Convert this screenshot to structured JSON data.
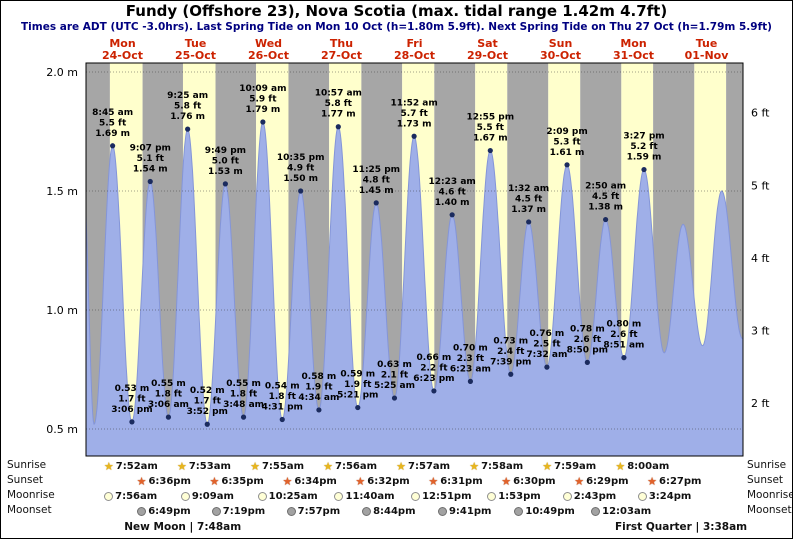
{
  "title": "Fundy (Offshore 23), Nova Scotia (max. tidal range 1.42m 4.7ft)",
  "subtitle": "Times are ADT (UTC -3.0hrs). Last Spring Tide on Mon 10 Oct (h=1.80m 5.9ft). Next Spring Tide on Thu 27 Oct (h=1.79m 5.9ft)",
  "chart_data": {
    "type": "area",
    "x_range_days": 9,
    "y_axis_left": {
      "unit": "m",
      "ticks": [
        "2.0 m",
        "1.5 m",
        "1.0 m",
        "0.5 m"
      ],
      "values": [
        2.0,
        1.5,
        1.0,
        0.5
      ]
    },
    "y_axis_right": {
      "unit": "ft",
      "ticks": [
        "6 ft",
        "5 ft",
        "4 ft",
        "3 ft",
        "2 ft"
      ],
      "values": [
        6,
        5,
        4,
        3,
        2
      ]
    },
    "days": [
      {
        "name": "Mon",
        "date": "24-Oct"
      },
      {
        "name": "Tue",
        "date": "25-Oct"
      },
      {
        "name": "Wed",
        "date": "26-Oct"
      },
      {
        "name": "Thu",
        "date": "27-Oct"
      },
      {
        "name": "Fri",
        "date": "28-Oct"
      },
      {
        "name": "Sat",
        "date": "29-Oct"
      },
      {
        "name": "Sun",
        "date": "30-Oct"
      },
      {
        "name": "Mon",
        "date": "31-Oct"
      },
      {
        "name": "Tue",
        "date": "01-Nov"
      }
    ],
    "tides": [
      {
        "kind": "high",
        "t": -0.8,
        "v": 1.52,
        "labeled": false
      },
      {
        "kind": "low",
        "t": 2.67,
        "v": 0.52,
        "labeled": false
      },
      {
        "kind": "high",
        "t": 8.75,
        "v": 1.69,
        "labeled": true,
        "time": "8:45 am",
        "ft": "5.5 ft",
        "m": "1.69 m"
      },
      {
        "kind": "low",
        "t": 15.1,
        "v": 0.53,
        "labeled": true,
        "time": "3:06 pm",
        "ft": "1.7 ft",
        "m": "0.53 m"
      },
      {
        "kind": "high",
        "t": 21.12,
        "v": 1.54,
        "labeled": true,
        "time": "9:07 pm",
        "ft": "5.1 ft",
        "m": "1.54 m"
      },
      {
        "kind": "low",
        "t": 27.1,
        "v": 0.55,
        "labeled": true,
        "time": "3:06 am",
        "ft": "1.8 ft",
        "m": "0.55 m"
      },
      {
        "kind": "high",
        "t": 33.42,
        "v": 1.76,
        "labeled": true,
        "time": "9:25 am",
        "ft": "5.8 ft",
        "m": "1.76 m"
      },
      {
        "kind": "low",
        "t": 39.87,
        "v": 0.52,
        "labeled": true,
        "time": "3:52 pm",
        "ft": "1.7 ft",
        "m": "0.52 m"
      },
      {
        "kind": "high",
        "t": 45.82,
        "v": 1.53,
        "labeled": true,
        "time": "9:49 pm",
        "ft": "5.0 ft",
        "m": "1.53 m"
      },
      {
        "kind": "low",
        "t": 51.8,
        "v": 0.55,
        "labeled": true,
        "time": "3:48 am",
        "ft": "1.8 ft",
        "m": "0.55 m"
      },
      {
        "kind": "high",
        "t": 58.15,
        "v": 1.79,
        "labeled": true,
        "time": "10:09 am",
        "ft": "5.9 ft",
        "m": "1.79 m"
      },
      {
        "kind": "low",
        "t": 64.52,
        "v": 0.54,
        "labeled": true,
        "time": "4:31 pm",
        "ft": "1.8 ft",
        "m": "0.54 m"
      },
      {
        "kind": "high",
        "t": 70.58,
        "v": 1.5,
        "labeled": true,
        "time": "10:35 pm",
        "ft": "4.9 ft",
        "m": "1.50 m"
      },
      {
        "kind": "low",
        "t": 76.57,
        "v": 0.58,
        "labeled": true,
        "time": "4:34 am",
        "ft": "1.9 ft",
        "m": "0.58 m"
      },
      {
        "kind": "high",
        "t": 82.95,
        "v": 1.77,
        "labeled": true,
        "time": "10:57 am",
        "ft": "5.8 ft",
        "m": "1.77 m"
      },
      {
        "kind": "low",
        "t": 89.35,
        "v": 0.59,
        "labeled": true,
        "time": "5:21 pm",
        "ft": "1.9 ft",
        "m": "0.59 m"
      },
      {
        "kind": "high",
        "t": 95.42,
        "v": 1.45,
        "labeled": true,
        "time": "11:25 pm",
        "ft": "4.8 ft",
        "m": "1.45 m"
      },
      {
        "kind": "low",
        "t": 101.42,
        "v": 0.63,
        "labeled": true,
        "time": "5:25 am",
        "ft": "2.1 ft",
        "m": "0.63 m"
      },
      {
        "kind": "high",
        "t": 107.87,
        "v": 1.73,
        "labeled": true,
        "time": "11:52 am",
        "ft": "5.7 ft",
        "m": "1.73 m"
      },
      {
        "kind": "low",
        "t": 114.38,
        "v": 0.66,
        "labeled": true,
        "time": "6:23 pm",
        "ft": "2.2 ft",
        "m": "0.66 m"
      },
      {
        "kind": "high",
        "t": 120.38,
        "v": 1.4,
        "labeled": true,
        "time": "12:23 am",
        "ft": "4.6 ft",
        "m": "1.40 m"
      },
      {
        "kind": "low",
        "t": 126.38,
        "v": 0.7,
        "labeled": true,
        "time": "6:23 am",
        "ft": "2.3 ft",
        "m": "0.70 m"
      },
      {
        "kind": "high",
        "t": 132.92,
        "v": 1.67,
        "labeled": true,
        "time": "12:55 pm",
        "ft": "5.5 ft",
        "m": "1.67 m"
      },
      {
        "kind": "low",
        "t": 139.65,
        "v": 0.73,
        "labeled": true,
        "time": "7:39 pm",
        "ft": "2.4 ft",
        "m": "0.73 m"
      },
      {
        "kind": "high",
        "t": 145.53,
        "v": 1.37,
        "labeled": true,
        "time": "1:32 am",
        "ft": "4.5 ft",
        "m": "1.37 m"
      },
      {
        "kind": "low",
        "t": 151.53,
        "v": 0.76,
        "labeled": true,
        "time": "7:32 am",
        "ft": "2.5 ft",
        "m": "0.76 m"
      },
      {
        "kind": "high",
        "t": 158.15,
        "v": 1.61,
        "labeled": true,
        "time": "2:09 pm",
        "ft": "5.3 ft",
        "m": "1.61 m"
      },
      {
        "kind": "low",
        "t": 164.83,
        "v": 0.78,
        "labeled": true,
        "time": "8:50 pm",
        "ft": "2.6 ft",
        "m": "0.78 m"
      },
      {
        "kind": "high",
        "t": 170.83,
        "v": 1.38,
        "labeled": true,
        "time": "2:50 am",
        "ft": "4.5 ft",
        "m": "1.38 m"
      },
      {
        "kind": "low",
        "t": 176.85,
        "v": 0.8,
        "labeled": true,
        "time": "8:51 am",
        "ft": "2.6 ft",
        "m": "0.80 m"
      },
      {
        "kind": "high",
        "t": 183.45,
        "v": 1.59,
        "labeled": true,
        "time": "3:27 pm",
        "ft": "5.2 ft",
        "m": "1.59 m"
      },
      {
        "kind": "low",
        "t": 190.1,
        "v": 0.82,
        "labeled": false
      },
      {
        "kind": "high",
        "t": 196.3,
        "v": 1.36,
        "labeled": false
      },
      {
        "kind": "low",
        "t": 202.7,
        "v": 0.85,
        "labeled": false
      },
      {
        "kind": "high",
        "t": 209.0,
        "v": 1.5,
        "labeled": false
      },
      {
        "kind": "low",
        "t": 215.8,
        "v": 0.88,
        "labeled": false
      },
      {
        "kind": "high",
        "t": 222.0,
        "v": 1.4,
        "labeled": false
      }
    ],
    "colors": {
      "daylight_band": "#ffffcc",
      "night_band": "#a6a6a6",
      "tide_fill": "#9fafe8",
      "tide_stroke": "#8495d8",
      "dot": "#1b2b5e",
      "date_label": "#cc2200",
      "subtitle": "#000080"
    }
  },
  "astro": {
    "row_labels": [
      "Sunrise",
      "Sunset",
      "Moonrise",
      "Moonset"
    ],
    "sunrise": [
      {
        "day": 0,
        "time": "7:52am"
      },
      {
        "day": 1,
        "time": "7:53am"
      },
      {
        "day": 2,
        "time": "7:55am"
      },
      {
        "day": 3,
        "time": "7:56am"
      },
      {
        "day": 4,
        "time": "7:57am"
      },
      {
        "day": 5,
        "time": "7:58am"
      },
      {
        "day": 6,
        "time": "7:59am"
      },
      {
        "day": 7,
        "time": "8:00am"
      }
    ],
    "sunset": [
      {
        "day": 0,
        "time": "6:36pm"
      },
      {
        "day": 1,
        "time": "6:35pm"
      },
      {
        "day": 2,
        "time": "6:34pm"
      },
      {
        "day": 3,
        "time": "6:32pm"
      },
      {
        "day": 4,
        "time": "6:31pm"
      },
      {
        "day": 5,
        "time": "6:30pm"
      },
      {
        "day": 6,
        "time": "6:29pm"
      },
      {
        "day": 7,
        "time": "6:27pm"
      }
    ],
    "moonrise": [
      {
        "day": 0,
        "time": "7:56am"
      },
      {
        "day": 1,
        "time": "9:09am"
      },
      {
        "day": 2,
        "time": "10:25am"
      },
      {
        "day": 3,
        "time": "11:40am"
      },
      {
        "day": 4,
        "time": "12:51pm"
      },
      {
        "day": 5,
        "time": "1:53pm"
      },
      {
        "day": 6,
        "time": "2:43pm"
      },
      {
        "day": 7,
        "time": "3:24pm"
      }
    ],
    "moonset": [
      {
        "day": 0,
        "time": "6:49pm"
      },
      {
        "day": 1,
        "time": "7:19pm"
      },
      {
        "day": 2,
        "time": "7:57pm"
      },
      {
        "day": 3,
        "time": "8:44pm"
      },
      {
        "day": 4,
        "time": "9:41pm"
      },
      {
        "day": 5,
        "time": "10:49pm"
      },
      {
        "day": 7,
        "time": "12:03am"
      }
    ],
    "phases": [
      {
        "name": "New Moon",
        "time": "7:48am",
        "day": 1
      },
      {
        "name": "First Quarter",
        "time": "3:38am",
        "day": 8
      }
    ]
  }
}
